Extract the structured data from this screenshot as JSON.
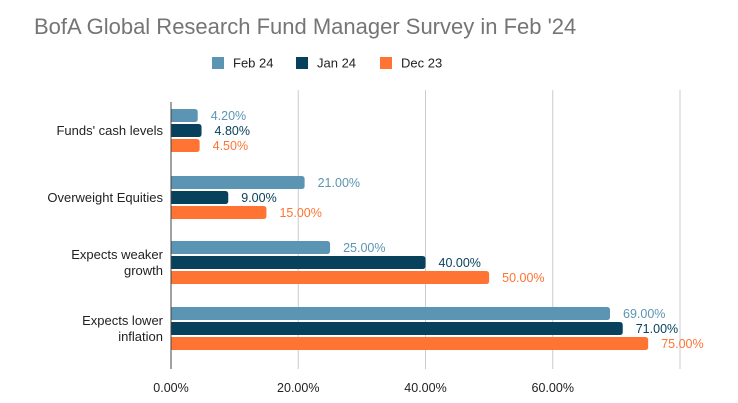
{
  "chart_data": {
    "type": "bar",
    "orientation": "horizontal",
    "title": "BofA Global Research Fund Manager Survey in Feb '24",
    "xlabel": "",
    "ylabel": "",
    "categories": [
      "Funds' cash levels",
      "Overweight Equities",
      "Expects weaker growth",
      "Expects lower inflation"
    ],
    "category_display_lines": [
      [
        "Funds' cash levels"
      ],
      [
        "Overweight Equities"
      ],
      [
        "Expects weaker",
        "growth"
      ],
      [
        "Expects lower",
        "inflation"
      ]
    ],
    "series": [
      {
        "name": "Feb 24",
        "color": "#5b95b3",
        "values": [
          4.2,
          21.0,
          25.0,
          69.0
        ],
        "labels": [
          "4.20%",
          "21.00%",
          "25.00%",
          "69.00%"
        ]
      },
      {
        "name": "Jan 24",
        "color": "#08415c",
        "values": [
          4.8,
          9.0,
          40.0,
          71.0
        ],
        "labels": [
          "4.80%",
          "9.00%",
          "40.00%",
          "71.00%"
        ]
      },
      {
        "name": "Dec 23",
        "color": "#ff7433",
        "values": [
          4.5,
          15.0,
          50.0,
          75.0
        ],
        "labels": [
          "4.50%",
          "15.00%",
          "50.00%",
          "75.00%"
        ]
      }
    ],
    "x_ticks": [
      0,
      20,
      40,
      60
    ],
    "x_tick_labels": [
      "0.00%",
      "20.00%",
      "40.00%",
      "60.00%"
    ],
    "xlim": [
      0,
      80
    ],
    "grid": "vertical",
    "legend_position": "top"
  }
}
